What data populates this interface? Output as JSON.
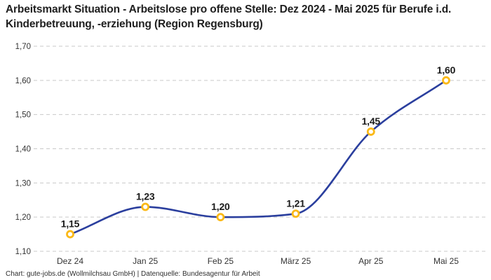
{
  "header": {
    "title": "Arbeitsmarkt Situation - Arbeitslose pro offene Stelle: Dez 2024 - Mai 2025 für Berufe i.d. Kinderbetreuung, -erziehung (Region Regensburg)"
  },
  "footer": {
    "credit": "Chart: gute-jobs.de (Wollmilchsau GmbH) | Datenquelle: Bundesagentur für Arbeit"
  },
  "chart_data": {
    "type": "line",
    "title": "Arbeitsmarkt Situation - Arbeitslose pro offene Stelle: Dez 2024 - Mai 2025 für Berufe i.d. Kinderbetreuung, -erziehung (Region Regensburg)",
    "categories": [
      "Dez 24",
      "Jan 25",
      "Feb 25",
      "März 25",
      "Apr 25",
      "Mai 25"
    ],
    "values": [
      1.15,
      1.23,
      1.2,
      1.21,
      1.45,
      1.6
    ],
    "point_labels": [
      "1,15",
      "1,23",
      "1,20",
      "1,21",
      "1,45",
      "1,60"
    ],
    "y_ticks": [
      {
        "value": 1.7,
        "label": "1,70"
      },
      {
        "value": 1.6,
        "label": "1,60"
      },
      {
        "value": 1.5,
        "label": "1,50"
      },
      {
        "value": 1.4,
        "label": "1,40"
      },
      {
        "value": 1.3,
        "label": "1,30"
      },
      {
        "value": 1.2,
        "label": "1,20"
      },
      {
        "value": 1.1,
        "label": "1,10"
      }
    ],
    "ylim": [
      1.1,
      1.7
    ],
    "xlabel": "",
    "ylabel": "",
    "grid": "horizontal-dashed",
    "legend": "none",
    "curve": "monotone",
    "colors": {
      "line": "#2b3f9e",
      "marker_ring": "#fbb917",
      "marker_fill": "#ffffff",
      "point_label": "#1a1a1a",
      "grid": "#c9c9c9",
      "tick_label": "#333333"
    }
  }
}
